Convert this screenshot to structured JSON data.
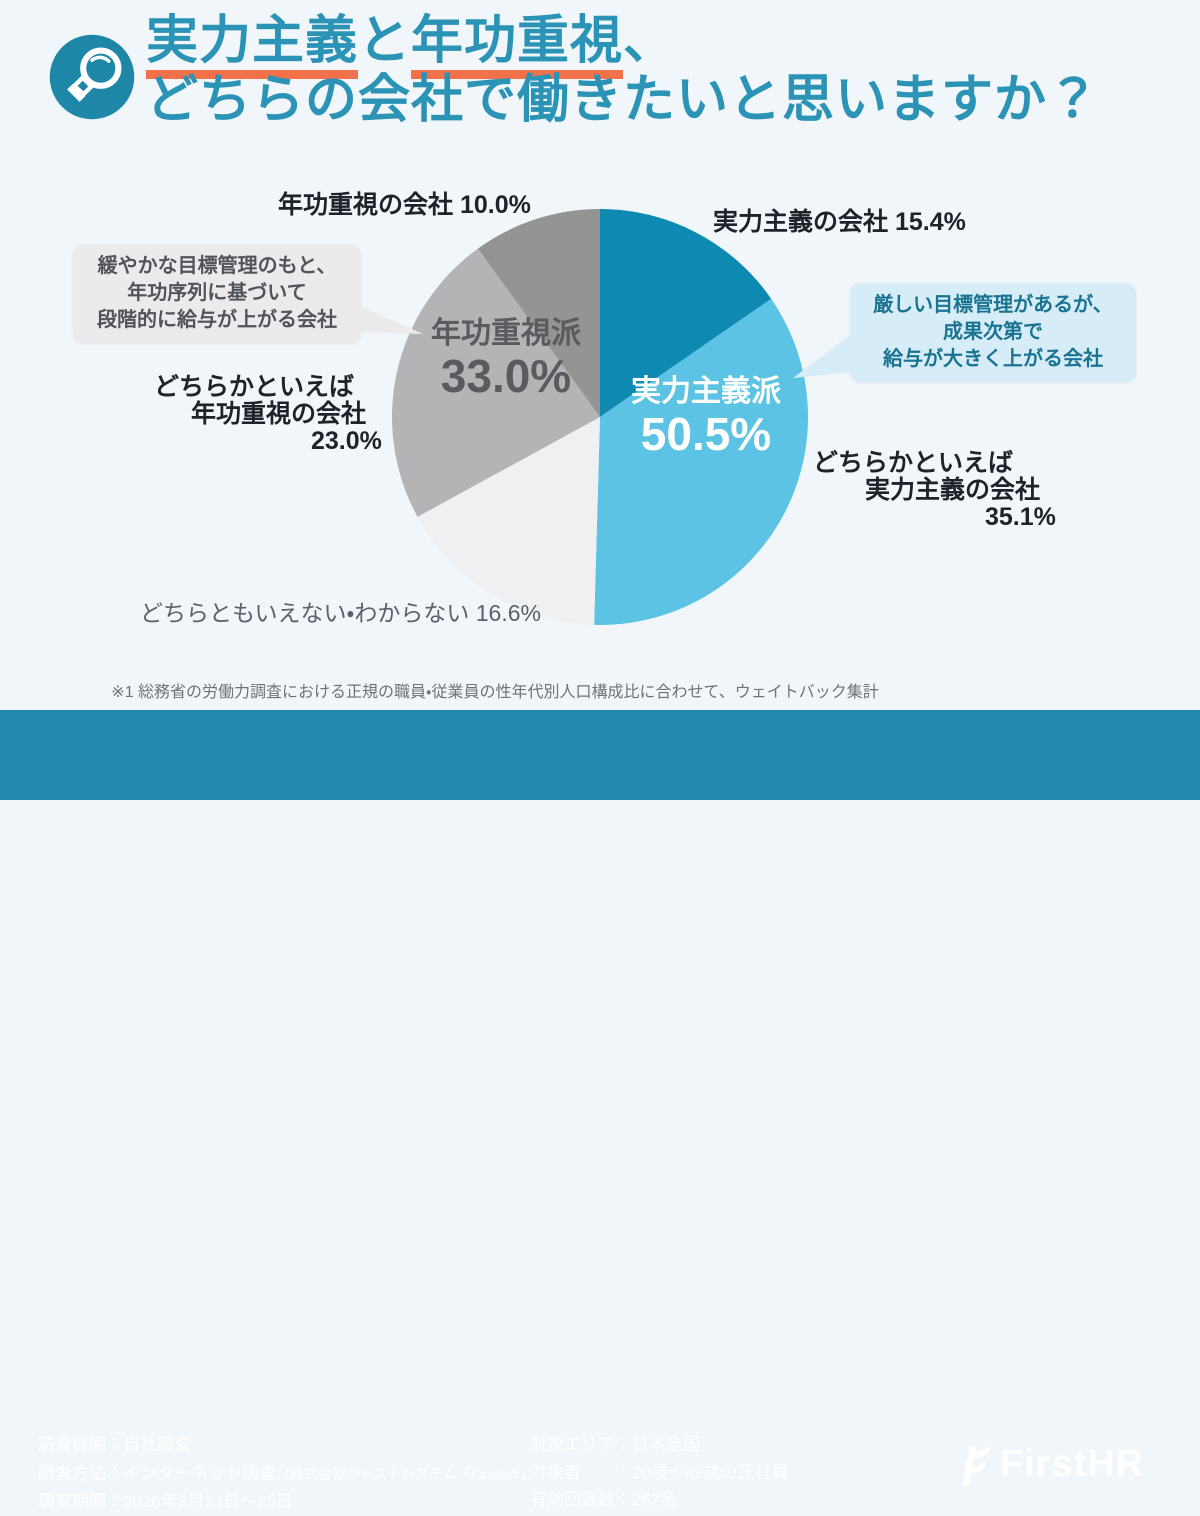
{
  "theme": {
    "page_bg": "#f0f6fa",
    "title_color": "#2b93b5",
    "accent": "#f2714b",
    "icon_bg": "#1e87a8",
    "footer_bg": "#2189ab",
    "label_dark": "#1f2329",
    "label_gray": "#5a6168",
    "callout_left_bg": "#ebebee",
    "callout_left_text": "#515458",
    "callout_right_bg": "#d6edf8",
    "callout_right_text": "#1a7391"
  },
  "header": {
    "title_line1": [
      "実力主義",
      "と",
      "年功重視",
      "、"
    ],
    "title_line2": "どちらの会社で働きたいと思いますか？"
  },
  "chart_data": {
    "type": "pie",
    "title": "実力主義と年功重視、どちらの会社で働きたいと思いますか？",
    "start_angle_deg": 0,
    "direction": "clockwise",
    "segments": [
      {
        "label": "実力主義の会社",
        "value": 15.4,
        "color": "#0e89b2"
      },
      {
        "label": "どちらかといえば実力主義の会社",
        "value": 35.1,
        "color": "#5cc3e4"
      },
      {
        "label": "どちらともいえない・わからない",
        "value": 16.6,
        "color": "#eff0f2"
      },
      {
        "label": "どちらかといえば年功重視の会社",
        "value": 23.0,
        "color": "#b3b4b6"
      },
      {
        "label": "年功重視の会社",
        "value": 10.0,
        "color": "#939494"
      }
    ],
    "groups": [
      {
        "label": "実力主義派",
        "value_text": "50.5%"
      },
      {
        "label": "年功重視派",
        "value_text": "33.0%"
      }
    ],
    "legend": "none",
    "labels_outside": true
  },
  "pie_labels": {
    "seniority": "年功重視の会社 10.0%",
    "merit": "実力主義の会社 15.4%",
    "neither": "どちらともいえない・わからない 16.6%",
    "rather_seniority": [
      "どちらかといえば",
      "年功重視の会社",
      "23.0%"
    ],
    "rather_merit": [
      "どちらかといえば",
      "実力主義の会社",
      "35.1%"
    ],
    "group_merit": {
      "name": "実力主義派",
      "pct": "50.5%"
    },
    "group_seniority": {
      "name": "年功重視派",
      "pct": "33.0%"
    }
  },
  "callouts": {
    "left": {
      "lines": [
        "緩やかな目標管理のもと、",
        "年功序列に基づいて",
        "段階的に給与が上がる会社"
      ]
    },
    "right": {
      "lines": [
        "厳しい目標管理があるが、",
        "成果次第で",
        "給与が大きく上がる会社"
      ]
    }
  },
  "footnote": "※1 総務省の労働力調査における正規の職員・従業員の性年代別人口構成比に合わせて、ウェイトバック集計",
  "footer": {
    "left_lines": [
      {
        "text": "調査機関：自社調査",
        "small": ""
      },
      {
        "text": "調査方法：インターネット調査",
        "small": "（株式会社ジャストシステム「Fastask」）"
      },
      {
        "text": "調査期間：2026年3月23日〜25日",
        "small": ""
      }
    ],
    "right_lines": [
      "対象エリア：日本全国",
      "対象者　　：20歳〜49歳の正社員",
      "有効回答数：262名"
    ],
    "logo_text": "FirstHR"
  }
}
